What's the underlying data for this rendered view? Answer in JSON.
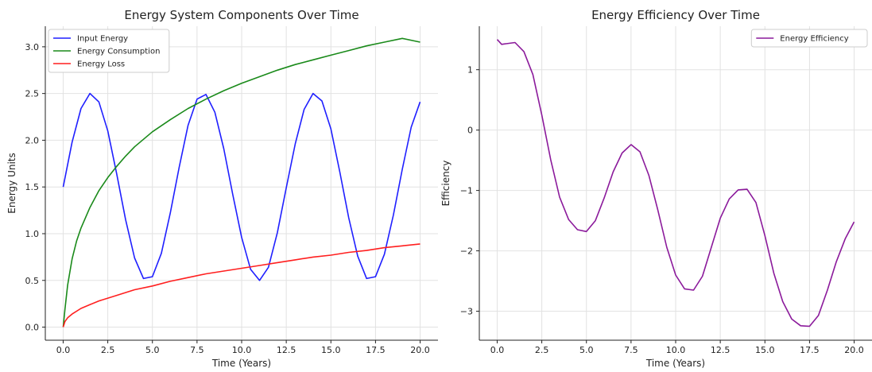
{
  "chart_data": [
    {
      "type": "line",
      "title": "Energy System Components Over Time",
      "xlabel": "Time (Years)",
      "ylabel": "Energy Units",
      "xlim": [
        -1,
        21
      ],
      "ylim": [
        -0.14,
        3.22
      ],
      "xticks": [
        0,
        2.5,
        5,
        7.5,
        10,
        12.5,
        15,
        17.5,
        20
      ],
      "xtick_labels": [
        "0.0",
        "2.5",
        "5.0",
        "7.5",
        "10.0",
        "12.5",
        "15.0",
        "17.5",
        "20.0"
      ],
      "yticks": [
        0,
        0.5,
        1,
        1.5,
        2,
        2.5,
        3
      ],
      "ytick_labels": [
        "0.0",
        "0.5",
        "1.0",
        "1.5",
        "2.0",
        "2.5",
        "3.0"
      ],
      "grid": true,
      "legend": "top-left",
      "series": [
        {
          "name": "Input Energy",
          "color": "#1f1fff",
          "x": [
            0,
            0.5,
            1,
            1.5,
            2,
            2.5,
            3,
            3.5,
            4,
            4.5,
            5,
            5.5,
            6,
            6.5,
            7,
            7.5,
            8,
            8.5,
            9,
            9.5,
            10,
            10.5,
            11,
            11.5,
            12,
            12.5,
            13,
            13.5,
            14,
            14.5,
            15,
            15.5,
            16,
            16.5,
            17,
            17.5,
            18,
            18.5,
            19,
            19.5,
            20
          ],
          "y": [
            1.5,
            1.98,
            2.34,
            2.5,
            2.41,
            2.1,
            1.64,
            1.15,
            0.74,
            0.52,
            0.54,
            0.79,
            1.22,
            1.71,
            2.16,
            2.44,
            2.49,
            2.3,
            1.91,
            1.42,
            0.96,
            0.62,
            0.5,
            0.64,
            1.01,
            1.49,
            1.96,
            2.33,
            2.5,
            2.42,
            2.12,
            1.66,
            1.17,
            0.76,
            0.52,
            0.54,
            0.78,
            1.2,
            1.69,
            2.14,
            2.41
          ]
        },
        {
          "name": "Energy Consumption",
          "color": "#1a8a1a",
          "x": [
            0,
            0.1,
            0.25,
            0.5,
            0.75,
            1,
            1.5,
            2,
            2.5,
            3,
            3.5,
            4,
            5,
            6,
            7,
            8,
            9,
            10,
            11,
            12,
            13,
            14,
            15,
            16,
            17,
            18,
            19,
            20
          ],
          "y": [
            0,
            0.19,
            0.45,
            0.73,
            0.92,
            1.06,
            1.28,
            1.46,
            1.6,
            1.72,
            1.83,
            1.93,
            2.09,
            2.22,
            2.34,
            2.44,
            2.53,
            2.61,
            2.68,
            2.75,
            2.81,
            2.86,
            2.91,
            2.96,
            3.01,
            3.05,
            3.09,
            3.05
          ]
        },
        {
          "name": "Energy Loss",
          "color": "#ff1f1f",
          "x": [
            0,
            0.1,
            0.25,
            0.5,
            1,
            1.5,
            2,
            3,
            4,
            5,
            6,
            7,
            8,
            9,
            10,
            11,
            12,
            13,
            14,
            15,
            16,
            17,
            18,
            19,
            20
          ],
          "y": [
            0,
            0.06,
            0.1,
            0.14,
            0.2,
            0.24,
            0.28,
            0.34,
            0.4,
            0.44,
            0.49,
            0.53,
            0.57,
            0.6,
            0.63,
            0.66,
            0.69,
            0.72,
            0.75,
            0.77,
            0.8,
            0.82,
            0.85,
            0.87,
            0.89
          ]
        }
      ]
    },
    {
      "type": "line",
      "title": "Energy Efficiency Over Time",
      "xlabel": "Time (Years)",
      "ylabel": "Efficiency",
      "xlim": [
        -1,
        21
      ],
      "ylim": [
        -3.48,
        1.72
      ],
      "xticks": [
        0,
        2.5,
        5,
        7.5,
        10,
        12.5,
        15,
        17.5,
        20
      ],
      "xtick_labels": [
        "0.0",
        "2.5",
        "5.0",
        "7.5",
        "10.0",
        "12.5",
        "15.0",
        "17.5",
        "20.0"
      ],
      "yticks": [
        -3,
        -2,
        -1,
        0,
        1
      ],
      "ytick_labels": [
        "−3",
        "−2",
        "−1",
        "0",
        "1"
      ],
      "grid": true,
      "legend": "top-right",
      "series": [
        {
          "name": "Energy Efficiency",
          "color": "#8b1a9b",
          "x": [
            0,
            0.25,
            0.5,
            1,
            1.5,
            2,
            2.5,
            3,
            3.5,
            4,
            4.5,
            5,
            5.5,
            6,
            6.5,
            7,
            7.5,
            8,
            8.5,
            9,
            9.5,
            10,
            10.5,
            11,
            11.5,
            12,
            12.5,
            13,
            13.5,
            14,
            14.5,
            15,
            15.5,
            16,
            16.5,
            17,
            17.5,
            18,
            18.5,
            19,
            19.5,
            20
          ],
          "y": [
            1.5,
            1.42,
            1.43,
            1.45,
            1.3,
            0.92,
            0.25,
            -0.49,
            -1.11,
            -1.48,
            -1.65,
            -1.68,
            -1.5,
            -1.12,
            -0.69,
            -0.38,
            -0.24,
            -0.36,
            -0.75,
            -1.32,
            -1.94,
            -2.4,
            -2.63,
            -2.65,
            -2.42,
            -1.94,
            -1.46,
            -1.14,
            -0.99,
            -0.98,
            -1.2,
            -1.75,
            -2.37,
            -2.84,
            -3.13,
            -3.24,
            -3.25,
            -3.07,
            -2.65,
            -2.18,
            -1.8,
            -1.52
          ]
        }
      ]
    }
  ]
}
